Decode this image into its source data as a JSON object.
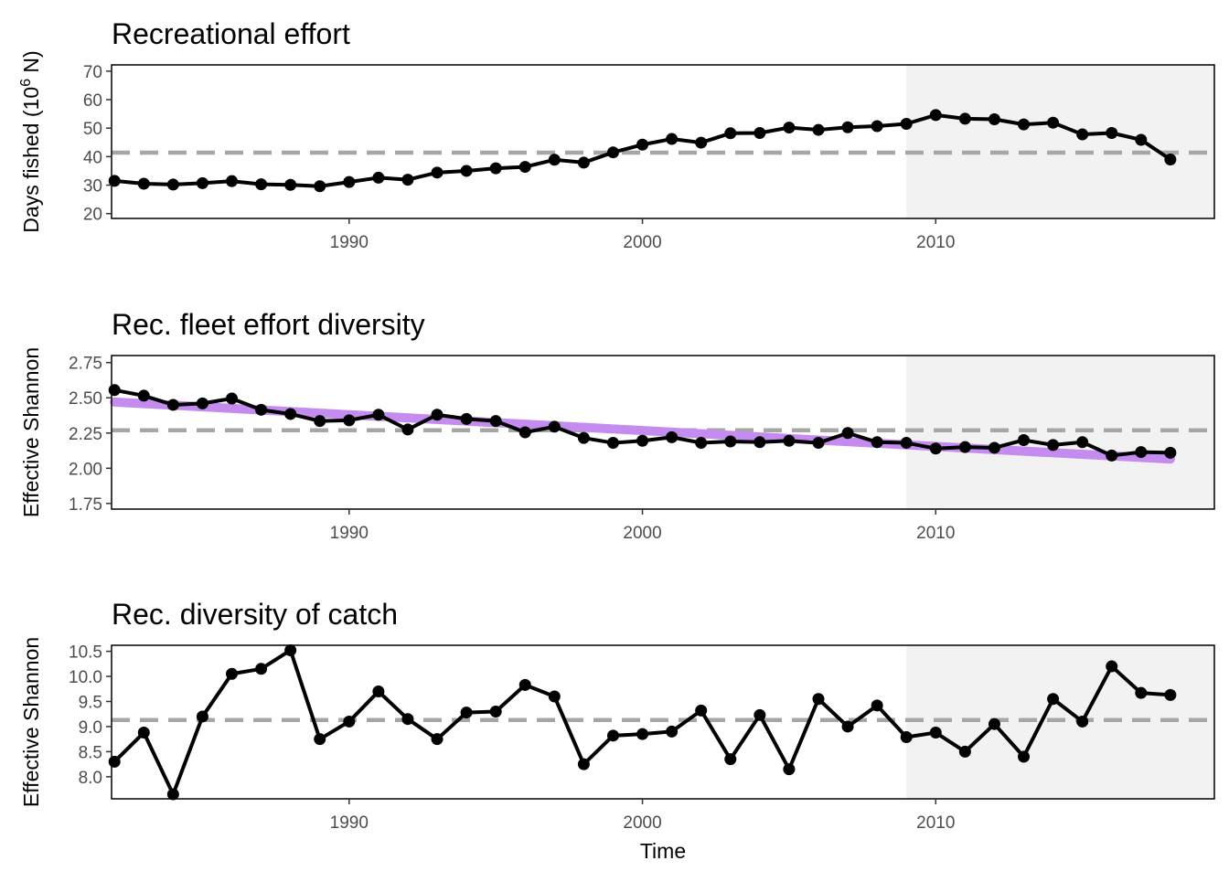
{
  "x_axis_label": "Time",
  "colors": {
    "line": "#000000",
    "reference": "#a6a6a6",
    "shade": "#f2f2f2",
    "trend": "#c58cf0"
  },
  "chart_data": [
    {
      "type": "line",
      "title": "Recreational effort",
      "ylabel_main": "Days fished (10",
      "ylabel_sup": "6",
      "ylabel_tail": " N)",
      "xlabel": "",
      "x": [
        1982,
        1983,
        1984,
        1985,
        1986,
        1987,
        1988,
        1989,
        1990,
        1991,
        1992,
        1993,
        1994,
        1995,
        1996,
        1997,
        1998,
        1999,
        2000,
        2001,
        2002,
        2003,
        2004,
        2005,
        2006,
        2007,
        2008,
        2009,
        2010,
        2011,
        2012,
        2013,
        2014,
        2015,
        2016,
        2017,
        2018
      ],
      "series": [
        {
          "values": [
            31.5,
            30.5,
            30.2,
            30.7,
            31.4,
            30.3,
            30.1,
            29.6,
            31.1,
            32.6,
            31.9,
            34.4,
            35.0,
            35.9,
            36.4,
            38.9,
            37.9,
            41.5,
            44.2,
            46.2,
            44.9,
            48.2,
            48.3,
            50.2,
            49.4,
            50.3,
            50.7,
            51.5,
            54.6,
            53.3,
            53.1,
            51.3,
            51.9,
            47.8,
            48.3,
            45.9,
            39.0
          ]
        }
      ],
      "reference_line": 41.4,
      "shaded_from": 2009,
      "xlim": [
        1981.9,
        2019.5
      ],
      "ylim": [
        18.3,
        72.2
      ],
      "xticks": [
        1990,
        2000,
        2010
      ],
      "yticks": [
        20,
        30,
        40,
        50,
        60,
        70
      ],
      "ytick_labels": [
        "20",
        "30",
        "40",
        "50",
        "60",
        "70"
      ],
      "xtick_labels": [
        "1990",
        "2000",
        "2010"
      ]
    },
    {
      "type": "line",
      "title": "Rec. fleet effort diversity",
      "ylabel": "Effective Shannon",
      "xlabel": "",
      "x": [
        1982,
        1983,
        1984,
        1985,
        1986,
        1987,
        1988,
        1989,
        1990,
        1991,
        1992,
        1993,
        1994,
        1995,
        1996,
        1997,
        1998,
        1999,
        2000,
        2001,
        2002,
        2003,
        2004,
        2005,
        2006,
        2007,
        2008,
        2009,
        2010,
        2011,
        2012,
        2013,
        2014,
        2015,
        2016,
        2017,
        2018
      ],
      "series": [
        {
          "values": [
            2.555,
            2.515,
            2.45,
            2.46,
            2.495,
            2.415,
            2.385,
            2.335,
            2.34,
            2.38,
            2.275,
            2.38,
            2.35,
            2.335,
            2.255,
            2.295,
            2.215,
            2.18,
            2.195,
            2.22,
            2.18,
            2.19,
            2.185,
            2.195,
            2.18,
            2.25,
            2.185,
            2.18,
            2.14,
            2.15,
            2.145,
            2.2,
            2.165,
            2.185,
            2.09,
            2.115,
            2.11
          ]
        }
      ],
      "trend": {
        "x": [
          1982,
          2018
        ],
        "y": [
          2.47,
          2.065
        ]
      },
      "reference_line": 2.27,
      "shaded_from": 2009,
      "xlim": [
        1981.9,
        2019.5
      ],
      "ylim": [
        1.71,
        2.8
      ],
      "xticks": [
        1990,
        2000,
        2010
      ],
      "yticks": [
        1.75,
        2.0,
        2.25,
        2.5,
        2.75
      ],
      "ytick_labels": [
        "1.75",
        "2.00",
        "2.25",
        "2.50",
        "2.75"
      ],
      "xtick_labels": [
        "1990",
        "2000",
        "2010"
      ]
    },
    {
      "type": "line",
      "title": "Rec. diversity of catch",
      "ylabel": "Effective Shannon",
      "xlabel": "Time",
      "x": [
        1982,
        1983,
        1984,
        1985,
        1986,
        1987,
        1988,
        1989,
        1990,
        1991,
        1992,
        1993,
        1994,
        1995,
        1996,
        1997,
        1998,
        1999,
        2000,
        2001,
        2002,
        2003,
        2004,
        2005,
        2006,
        2007,
        2008,
        2009,
        2010,
        2011,
        2012,
        2013,
        2014,
        2015,
        2016,
        2017,
        2018
      ],
      "series": [
        {
          "values": [
            8.3,
            8.88,
            7.65,
            9.2,
            10.05,
            10.15,
            10.52,
            8.75,
            9.1,
            9.7,
            9.15,
            8.75,
            9.28,
            9.3,
            9.83,
            9.6,
            8.25,
            8.82,
            8.85,
            8.9,
            9.32,
            8.35,
            9.23,
            8.15,
            9.55,
            9.0,
            9.42,
            8.79,
            8.88,
            8.5,
            9.05,
            8.4,
            9.55,
            9.1,
            10.2,
            9.67,
            9.63
          ]
        }
      ],
      "reference_line": 9.13,
      "shaded_from": 2009,
      "xlim": [
        1981.9,
        2019.5
      ],
      "ylim": [
        7.56,
        10.62
      ],
      "xticks": [
        1990,
        2000,
        2010
      ],
      "yticks": [
        8.0,
        8.5,
        9.0,
        9.5,
        10.0,
        10.5
      ],
      "ytick_labels": [
        "8.0",
        "8.5",
        "9.0",
        "9.5",
        "10.0",
        "10.5"
      ],
      "xtick_labels": [
        "1990",
        "2000",
        "2010"
      ]
    }
  ]
}
